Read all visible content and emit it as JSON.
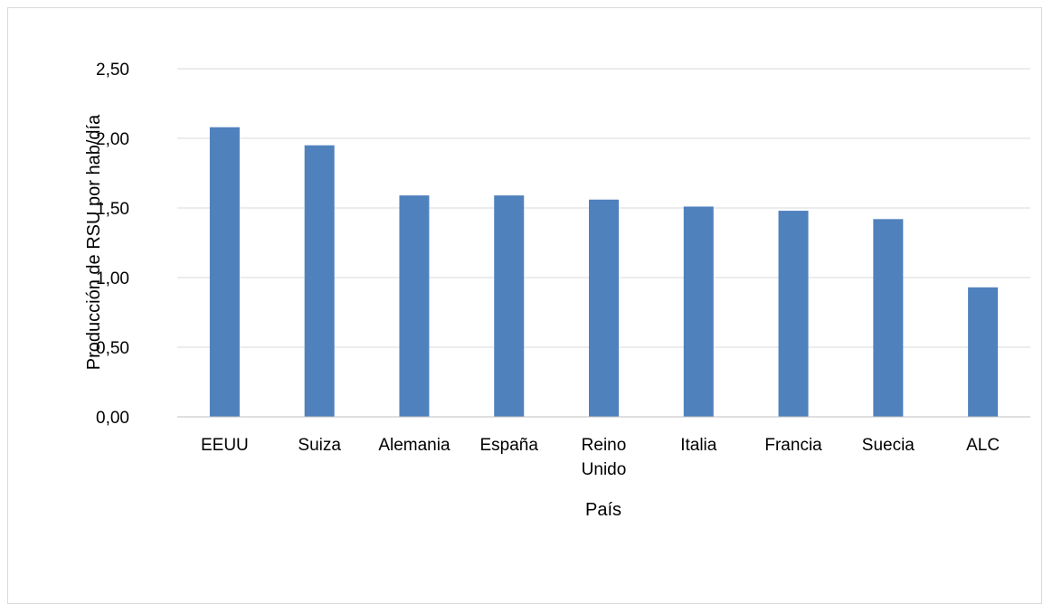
{
  "chart_data": {
    "type": "bar",
    "title": "",
    "xlabel": "País",
    "ylabel": "Producción de RSU por hab/día",
    "categories": [
      [
        "EEUU"
      ],
      [
        "Suiza"
      ],
      [
        "Alemania"
      ],
      [
        "España"
      ],
      [
        "Reino",
        "Unido"
      ],
      [
        "Italia"
      ],
      [
        "Francia"
      ],
      [
        "Suecia"
      ],
      [
        "ALC"
      ]
    ],
    "values": [
      2.08,
      1.95,
      1.59,
      1.59,
      1.56,
      1.51,
      1.48,
      1.42,
      0.93
    ],
    "ylim": [
      0,
      2.5
    ],
    "yticks": [
      "0,00",
      "0,50",
      "1,00",
      "1,50",
      "2,00",
      "2,50"
    ],
    "ytick_values": [
      0,
      0.5,
      1,
      1.5,
      2,
      2.5
    ],
    "grid": true,
    "legend": "none",
    "colors": {
      "bar": "#4f81bd",
      "grid": "#d9d9d9",
      "axis": "#bfbfbf"
    }
  }
}
